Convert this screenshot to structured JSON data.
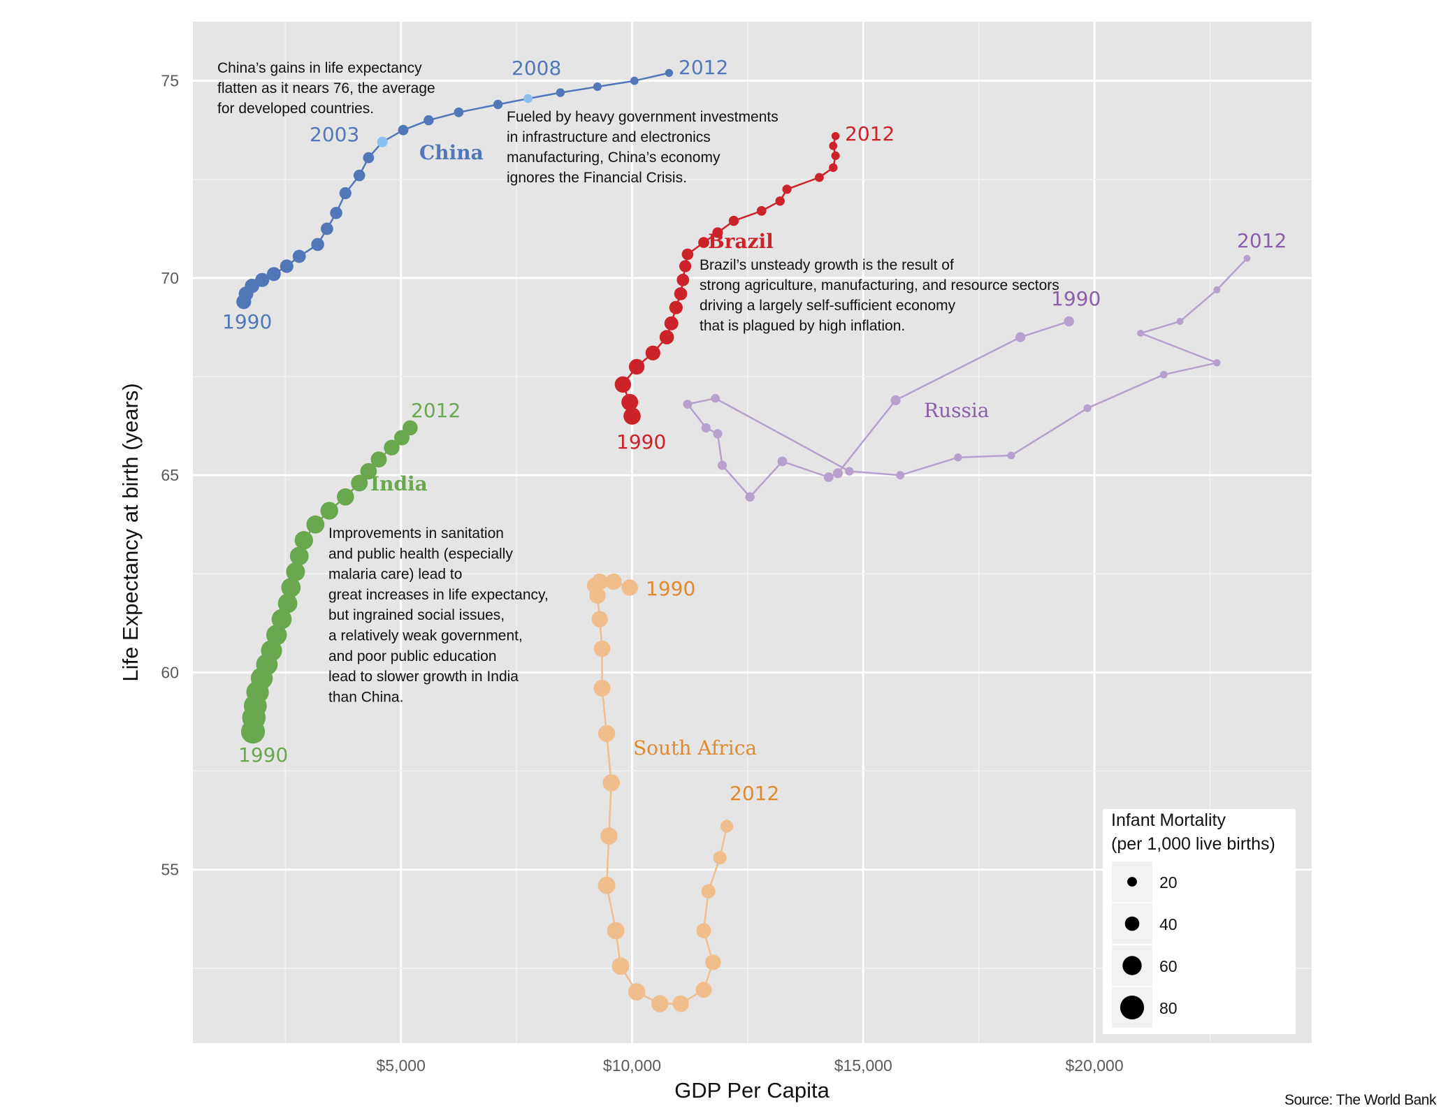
{
  "chart_data": {
    "type": "scatter",
    "title": "",
    "xlabel": "GDP Per Capita",
    "ylabel": "Life Expectancy at birth (years)",
    "xlim": [
      500,
      24700
    ],
    "ylim": [
      50.6,
      76.5
    ],
    "x_ticks": [
      {
        "value": 5000,
        "label": "$5,000"
      },
      {
        "value": 10000,
        "label": "$10,000"
      },
      {
        "value": 15000,
        "label": "$15,000"
      },
      {
        "value": 20000,
        "label": "$20,000"
      }
    ],
    "y_ticks": [
      {
        "value": 55,
        "label": "55"
      },
      {
        "value": 60,
        "label": "60"
      },
      {
        "value": 65,
        "label": "65"
      },
      {
        "value": 70,
        "label": "70"
      },
      {
        "value": 75,
        "label": "75"
      }
    ],
    "size_legend": {
      "title_lines": [
        "Infant Mortality",
        "(per 1,000 live births)"
      ],
      "entries": [
        {
          "label": "20",
          "value": 20
        },
        {
          "label": "40",
          "value": 40
        },
        {
          "label": "60",
          "value": 60
        },
        {
          "label": "80",
          "value": 80
        }
      ]
    },
    "series": [
      {
        "name": "China",
        "color": "#5277b8",
        "highlight_color": "#8cc0ee",
        "years": [
          1990,
          1991,
          1992,
          1993,
          1994,
          1995,
          1996,
          1997,
          1998,
          1999,
          2000,
          2001,
          2002,
          2003,
          2004,
          2005,
          2006,
          2007,
          2008,
          2009,
          2010,
          2011,
          2012
        ],
        "x": [
          1600,
          1650,
          1780,
          2000,
          2250,
          2530,
          2800,
          3200,
          3400,
          3600,
          3800,
          4100,
          4300,
          4600,
          5050,
          5600,
          6250,
          7100,
          7750,
          8450,
          9250,
          10050,
          10800
        ],
        "y": [
          69.4,
          69.6,
          69.8,
          69.95,
          70.1,
          70.3,
          70.55,
          70.85,
          71.25,
          71.65,
          72.15,
          72.6,
          73.05,
          73.45,
          73.75,
          74.0,
          74.2,
          74.4,
          74.55,
          74.7,
          74.85,
          75.0,
          75.2
        ],
        "infant_mortality": [
          42,
          41,
          40,
          39,
          38,
          36,
          35,
          34,
          32,
          31,
          30,
          28,
          26,
          24,
          23,
          22,
          20,
          19,
          17,
          16,
          15,
          14,
          13
        ],
        "highlight_years": [
          2003,
          2008
        ]
      },
      {
        "name": "India",
        "color": "#6aa84f",
        "years": [
          1990,
          1991,
          1992,
          1993,
          1994,
          1995,
          1996,
          1997,
          1998,
          1999,
          2000,
          2001,
          2002,
          2003,
          2004,
          2005,
          2006,
          2007,
          2008,
          2009,
          2010,
          2011,
          2012
        ],
        "x": [
          1800,
          1820,
          1850,
          1900,
          1990,
          2100,
          2200,
          2310,
          2420,
          2550,
          2620,
          2720,
          2800,
          2900,
          3150,
          3450,
          3800,
          4100,
          4300,
          4520,
          4800,
          5020,
          5200
        ],
        "y": [
          58.5,
          58.85,
          59.15,
          59.5,
          59.85,
          60.2,
          60.55,
          60.95,
          61.35,
          61.75,
          62.15,
          62.55,
          62.95,
          63.35,
          63.75,
          64.1,
          64.45,
          64.8,
          65.1,
          65.4,
          65.7,
          65.95,
          66.2
        ],
        "infant_mortality": [
          80,
          78,
          76,
          74,
          72,
          70,
          68,
          66,
          64,
          62,
          61,
          59,
          58,
          57,
          55,
          54,
          52,
          50,
          49,
          47,
          45,
          44,
          43
        ]
      },
      {
        "name": "Brazil",
        "color": "#cc2229",
        "years": [
          1990,
          1991,
          1992,
          1993,
          1994,
          1995,
          1996,
          1997,
          1998,
          1999,
          2000,
          2001,
          2002,
          2003,
          2004,
          2005,
          2006,
          2007,
          2008,
          2009,
          2010,
          2011,
          2012
        ],
        "x": [
          10000,
          9950,
          9800,
          10100,
          10450,
          10750,
          10850,
          10950,
          11050,
          11100,
          11150,
          11200,
          11550,
          11850,
          12200,
          12800,
          13200,
          13350,
          14050,
          14350,
          14400,
          14350,
          14400
        ],
        "y": [
          66.5,
          66.85,
          67.3,
          67.75,
          68.1,
          68.5,
          68.85,
          69.25,
          69.6,
          69.95,
          70.3,
          70.6,
          70.9,
          71.15,
          71.45,
          71.7,
          71.95,
          72.25,
          72.55,
          72.8,
          73.1,
          73.35,
          73.6
        ],
        "infant_mortality": [
          52,
          50,
          48,
          45,
          42,
          40,
          38,
          36,
          34,
          32,
          30,
          28,
          26,
          24,
          22,
          20,
          19,
          18,
          17,
          16,
          15,
          14,
          13
        ]
      },
      {
        "name": "Russia",
        "color": "#b7a0cc",
        "label_color": "#8b5fa8",
        "years": [
          1990,
          1991,
          1992,
          1993,
          1994,
          1995,
          1996,
          1997,
          1998,
          1999,
          2000,
          2001,
          2002,
          2003,
          2004,
          2005,
          2006,
          2007,
          2008,
          2009,
          2010,
          2011,
          2012
        ],
        "x": [
          19450,
          18400,
          15700,
          14450,
          14250,
          13250,
          12550,
          11950,
          11850,
          11600,
          11200,
          11800,
          14700,
          15800,
          17050,
          18200,
          19850,
          21500,
          22650,
          21000,
          21850,
          22650,
          23300
        ],
        "y": [
          68.9,
          68.5,
          66.9,
          65.05,
          64.95,
          65.35,
          64.45,
          65.25,
          66.05,
          66.2,
          66.8,
          66.95,
          65.1,
          65.0,
          65.45,
          65.5,
          66.7,
          67.55,
          67.85,
          68.6,
          68.9,
          69.7,
          70.5
        ],
        "infant_mortality": [
          22,
          21,
          21,
          21,
          20,
          20,
          19,
          18,
          18,
          18,
          17,
          16,
          15,
          14,
          13,
          12,
          12,
          11,
          10,
          9,
          9,
          9,
          8
        ]
      },
      {
        "name": "South Africa",
        "color": "#f0bd8c",
        "label_color": "#e08a30",
        "years": [
          1990,
          1991,
          1992,
          1993,
          1994,
          1995,
          1996,
          1997,
          1998,
          1999,
          2000,
          2001,
          2002,
          2003,
          2004,
          2005,
          2006,
          2007,
          2008,
          2009,
          2010,
          2011,
          2012
        ],
        "x": [
          9950,
          9600,
          9300,
          9200,
          9250,
          9300,
          9350,
          9350,
          9450,
          9550,
          9500,
          9450,
          9650,
          9750,
          10100,
          10600,
          11050,
          11550,
          11750,
          11550,
          11650,
          11900,
          12050
        ],
        "y": [
          62.15,
          62.3,
          62.3,
          62.2,
          61.95,
          61.35,
          60.6,
          59.6,
          58.45,
          57.2,
          55.85,
          54.6,
          53.45,
          52.55,
          51.9,
          51.6,
          51.6,
          51.95,
          52.65,
          53.45,
          54.45,
          55.3,
          56.1
        ],
        "infant_mortality": [
          48,
          48,
          48,
          48,
          48,
          48,
          49,
          50,
          51,
          52,
          52,
          53,
          53,
          53,
          52,
          51,
          49,
          47,
          45,
          42,
          39,
          36,
          33
        ]
      }
    ],
    "year_labels": [
      {
        "series": "China",
        "text": "1990"
      },
      {
        "series": "China",
        "text": "2003"
      },
      {
        "series": "China",
        "text": "2008"
      },
      {
        "series": "China",
        "text": "2012"
      },
      {
        "series": "India",
        "text": "1990"
      },
      {
        "series": "India",
        "text": "2012"
      },
      {
        "series": "Brazil",
        "text": "1990"
      },
      {
        "series": "Brazil",
        "text": "2012"
      },
      {
        "series": "Russia",
        "text": "1990"
      },
      {
        "series": "Russia",
        "text": "2012"
      },
      {
        "series": "South Africa",
        "text": "1990"
      },
      {
        "series": "South Africa",
        "text": "2012"
      }
    ],
    "annotations": {
      "china": [
        "China’s gains in life expectancy",
        "flatten as it nears 76, the average",
        "for developed countries."
      ],
      "china_economy": [
        "Fueled by heavy government investments",
        "in infrastructure and electronics",
        "manufacturing, China’s economy",
        "ignores the Financial Crisis."
      ],
      "brazil": [
        "Brazil’s unsteady growth is the result of",
        "strong agriculture, manufacturing, and resource sectors",
        "driving a largely self-sufficient economy",
        "that is plagued by high inflation."
      ],
      "india": [
        "Improvements in sanitation",
        "and public health (especially",
        "malaria care) lead to",
        "great increases in life expectancy,",
        "but ingrained social issues,",
        "a relatively weak government,",
        "and poor public education",
        "lead to slower growth in India",
        "than China."
      ]
    },
    "grid": true,
    "legend_position": "bottom-right",
    "background_color": "#e5e5e5",
    "source": "Source: The World Bank"
  }
}
